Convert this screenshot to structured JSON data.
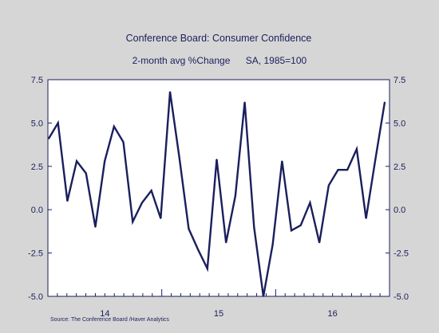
{
  "chart_data": {
    "type": "line",
    "title": "Conference Board: Consumer Confidence",
    "subtitle_left": "2-month avg %Change",
    "subtitle_right": "SA, 1985=100",
    "source": "Source:  The Conference Board /Haver Analytics",
    "ylim": [
      -5.0,
      7.5
    ],
    "yticks": [
      "7.5",
      "5.0",
      "2.5",
      "0.0",
      "-2.5",
      "-5.0"
    ],
    "ytick_values": [
      7.5,
      5.0,
      2.5,
      0.0,
      -2.5,
      -5.0
    ],
    "x_year_labels": [
      "14",
      "15",
      "16"
    ],
    "grid": false,
    "line_color": "#1a1f5c",
    "text_color": "#1a1f5c",
    "series": [
      {
        "values": [
          4.1,
          5.0,
          0.5,
          2.8,
          2.1,
          -1.0,
          2.8,
          4.8,
          3.9,
          -0.7,
          0.4,
          1.1,
          -0.5,
          6.8,
          3.0,
          -1.1,
          -2.3,
          -3.4,
          2.9,
          -1.9,
          0.8,
          6.2,
          -1.0,
          -5.0,
          -2.0,
          2.8,
          -1.2,
          -0.9,
          0.4,
          -1.9,
          1.4,
          2.3,
          2.3,
          3.5,
          -0.5,
          2.9,
          6.2
        ]
      }
    ]
  }
}
